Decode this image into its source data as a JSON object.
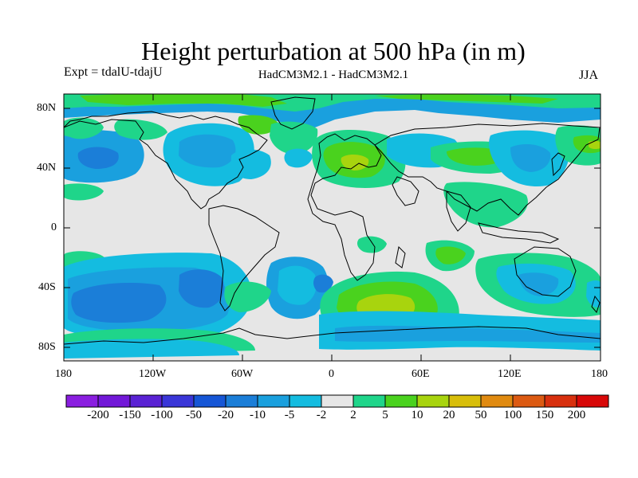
{
  "title": "Height perturbation at 500 hPa (in m)",
  "experiment": "Expt = tdalU-tdajU",
  "models": "HadCM3M2.1 - HadCM3M2.1",
  "season": "JJA",
  "lat_ticks": [
    "80N",
    "40N",
    "0",
    "40S",
    "80S"
  ],
  "lon_ticks": [
    "180",
    "120W",
    "60W",
    "0",
    "60E",
    "120E",
    "180"
  ],
  "colorbar": {
    "labels": [
      "-200",
      "-150",
      "-100",
      "-50",
      "-20",
      "-10",
      "-5",
      "-2",
      "2",
      "5",
      "10",
      "20",
      "50",
      "100",
      "150",
      "200"
    ],
    "colors": [
      "#8a1ee0",
      "#7218d8",
      "#5a22d4",
      "#3a36d8",
      "#1656d6",
      "#1b7ed8",
      "#1aa0de",
      "#14bce0",
      "#e6e6e6",
      "#1fd58a",
      "#4ad21e",
      "#a8d40e",
      "#d8be0a",
      "#e08a10",
      "#dc5a12",
      "#d8300e",
      "#d80808"
    ]
  },
  "palette": {
    "land_line": "#000000",
    "neutral": "#e6e6e6",
    "neg_light": "#14bce0",
    "neg_mid": "#1aa0de",
    "neg_deep": "#1b7ed8",
    "pos_light": "#1fd58a",
    "pos_mid": "#4ad21e",
    "pos_strong": "#a8d40e"
  }
}
